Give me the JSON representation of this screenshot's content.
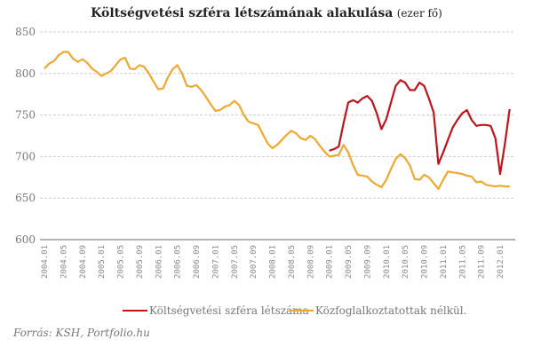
{
  "chart_data": {
    "type": "line",
    "title": "Költségvetési szféra létszámának alakulása",
    "unit": "(ezer fő)",
    "ylim": [
      600,
      850
    ],
    "yticks": [
      600,
      650,
      700,
      750,
      800,
      850
    ],
    "xtick_labels": [
      "2004.01",
      "2004.05",
      "2004.09",
      "2005.01",
      "2005.05",
      "2005.09",
      "2006.01",
      "2006.05",
      "2006.09",
      "2007.01",
      "2007.05",
      "2007.09",
      "2008.01",
      "2008.05",
      "2008.09",
      "2009.01",
      "2009.05",
      "2009.09",
      "2010.01",
      "2010.05",
      "2010.09",
      "2011.01",
      "2011.05",
      "2011.09",
      "2012.01"
    ],
    "grid": true,
    "legend_position": "bottom",
    "x_start": "2004.01",
    "x_end": "2012.03",
    "series": [
      {
        "name": "Költségvetési szféra létszáma",
        "color": "#c0141c",
        "start": "2009.01",
        "values": [
          707,
          709,
          712,
          740,
          765,
          768,
          765,
          770,
          773,
          767,
          752,
          733,
          745,
          765,
          785,
          792,
          789,
          780,
          780,
          789,
          785,
          770,
          753,
          691,
          705,
          720,
          735,
          744,
          752,
          756,
          744,
          737,
          738,
          738,
          737,
          722,
          679,
          715,
          757
        ]
      },
      {
        "name": "Közfoglalkoztatottak nélkül.",
        "color": "#f0a830",
        "start": "2004.01",
        "values": [
          806,
          812,
          815,
          822,
          826,
          826,
          818,
          814,
          817,
          813,
          806,
          802,
          797,
          800,
          803,
          810,
          817,
          819,
          806,
          805,
          810,
          808,
          800,
          790,
          781,
          782,
          795,
          805,
          810,
          800,
          785,
          784,
          786,
          780,
          772,
          763,
          755,
          756,
          760,
          762,
          767,
          762,
          750,
          742,
          740,
          738,
          727,
          716,
          710,
          714,
          720,
          726,
          731,
          728,
          722,
          720,
          725,
          721,
          713,
          706,
          700,
          701,
          702,
          714,
          705,
          690,
          678,
          677,
          676,
          670,
          666,
          663,
          672,
          685,
          697,
          703,
          698,
          689,
          673,
          672,
          678,
          675,
          668,
          661,
          672,
          682,
          681,
          680,
          679,
          677,
          676,
          669,
          670,
          666,
          665,
          664,
          665,
          664,
          664
        ]
      }
    ],
    "source": "Forrás: KSH, Portfolio.hu"
  }
}
